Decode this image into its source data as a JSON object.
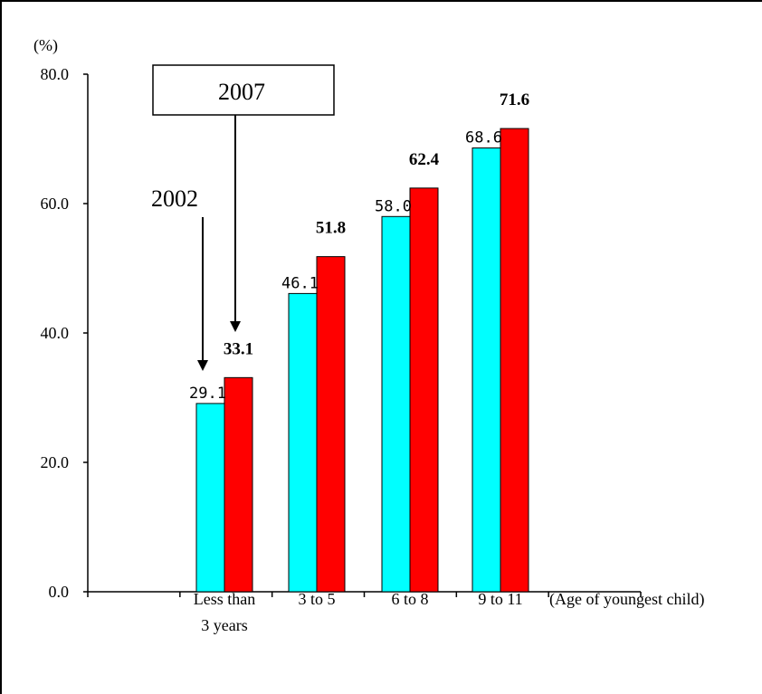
{
  "chart_data": {
    "type": "bar",
    "unit_label": "(%)",
    "categories": [
      [
        "Less than",
        "3 years"
      ],
      [
        "3 to 5"
      ],
      [
        "6 to 8"
      ],
      [
        "9 to 11"
      ]
    ],
    "xlabel": "(Age of youngest child)",
    "ylabel": "",
    "ylim": [
      0,
      80
    ],
    "yticks": [
      "0.0",
      "20.0",
      "40.0",
      "60.0",
      "80.0"
    ],
    "grid": false,
    "series": [
      {
        "name": "2002",
        "values": [
          29.1,
          46.1,
          58.0,
          68.6
        ],
        "labels": [
          "29.1",
          "46.1",
          "58.0",
          "68.6"
        ],
        "color": "#00ffff"
      },
      {
        "name": "2007",
        "values": [
          33.1,
          51.8,
          62.4,
          71.6
        ],
        "labels": [
          "33.1",
          "51.8",
          "62.4",
          "71.6"
        ],
        "color": "#ff0000"
      }
    ],
    "callouts": {
      "series_a": "2002",
      "series_b": "2007"
    }
  }
}
